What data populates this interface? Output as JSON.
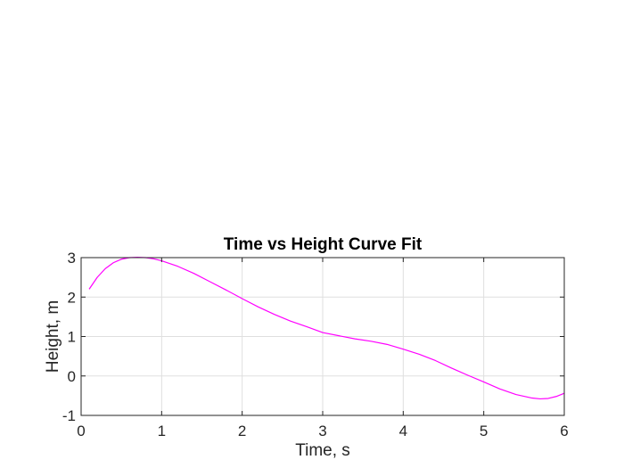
{
  "chart_data": {
    "type": "line",
    "title": "Time vs Height Curve Fit",
    "xlabel": "Time, s",
    "ylabel": "Height, m",
    "xlim": [
      0,
      6
    ],
    "ylim": [
      -1,
      3
    ],
    "xticks": [
      0,
      1,
      2,
      3,
      4,
      5,
      6
    ],
    "yticks": [
      -1,
      0,
      1,
      2,
      3
    ],
    "xtick_labels": [
      "0",
      "1",
      "2",
      "3",
      "4",
      "5",
      "6"
    ],
    "ytick_labels": [
      "-1",
      "0",
      "1",
      "2",
      "3"
    ],
    "grid": true,
    "box": true,
    "series": [
      {
        "color": "#ff00ff",
        "x": [
          0.1,
          0.2,
          0.3,
          0.4,
          0.5,
          0.6,
          0.7,
          0.8,
          0.9,
          1.0,
          1.2,
          1.4,
          1.6,
          1.8,
          2.0,
          2.2,
          2.4,
          2.6,
          2.8,
          3.0,
          3.2,
          3.4,
          3.6,
          3.8,
          4.0,
          4.2,
          4.4,
          4.6,
          4.8,
          5.0,
          5.2,
          5.4,
          5.6,
          5.7,
          5.8,
          5.9,
          6.0
        ],
        "y": [
          2.2,
          2.5,
          2.72,
          2.87,
          2.96,
          3.0,
          3.01,
          3.0,
          2.97,
          2.92,
          2.78,
          2.6,
          2.39,
          2.18,
          1.96,
          1.75,
          1.56,
          1.39,
          1.25,
          1.1,
          1.02,
          0.94,
          0.88,
          0.8,
          0.68,
          0.55,
          0.39,
          0.2,
          0.02,
          -0.15,
          -0.33,
          -0.47,
          -0.56,
          -0.58,
          -0.57,
          -0.52,
          -0.44
        ]
      }
    ]
  }
}
